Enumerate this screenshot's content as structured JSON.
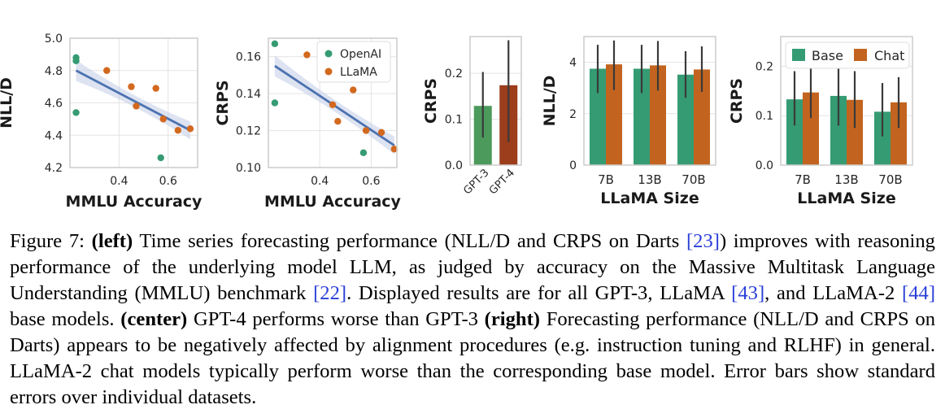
{
  "colors": {
    "openai": "#359b73",
    "llama": "#d2691e",
    "base": "#359b73",
    "chat": "#c2641f",
    "gpt3": "#4c9a5c",
    "gpt4": "#9c3d1b",
    "fit_line": "#4c72b0",
    "fit_band": "#c7d0e8"
  },
  "chart_data": [
    {
      "type": "scatter",
      "xlabel": "MMLU Accuracy",
      "ylabel": "NLL/D",
      "xlim": [
        0.2,
        0.72
      ],
      "ylim": [
        4.2,
        5.0
      ],
      "xticks": [
        "0.4",
        "0.6"
      ],
      "yticks": [
        "4.2",
        "4.4",
        "4.6",
        "4.8",
        "5.0"
      ],
      "grid": true,
      "series": [
        {
          "name": "OpenAI",
          "points": [
            [
              0.225,
              4.88
            ],
            [
              0.225,
              4.86
            ],
            [
              0.225,
              4.54
            ],
            [
              0.57,
              4.26
            ]
          ]
        },
        {
          "name": "LLaMA",
          "points": [
            [
              0.35,
              4.8
            ],
            [
              0.45,
              4.7
            ],
            [
              0.47,
              4.58
            ],
            [
              0.55,
              4.69
            ],
            [
              0.58,
              4.5
            ],
            [
              0.64,
              4.43
            ],
            [
              0.69,
              4.44
            ]
          ]
        }
      ],
      "regression": {
        "x": [
          0.225,
          0.69
        ],
        "y": [
          4.8,
          4.43
        ]
      }
    },
    {
      "type": "scatter",
      "xlabel": "MMLU Accuracy",
      "ylabel": "CRPS",
      "xlim": [
        0.2,
        0.7
      ],
      "ylim": [
        0.1,
        0.17
      ],
      "xticks": [
        "0.4",
        "0.6"
      ],
      "yticks": [
        "0.10",
        "0.12",
        "0.14",
        "0.16"
      ],
      "grid": true,
      "legend_position": "top-right",
      "series": [
        {
          "name": "OpenAI",
          "points": [
            [
              0.225,
              0.167
            ],
            [
              0.225,
              0.135
            ],
            [
              0.57,
              0.108
            ]
          ]
        },
        {
          "name": "LLaMA",
          "points": [
            [
              0.35,
              0.161
            ],
            [
              0.45,
              0.134
            ],
            [
              0.47,
              0.125
            ],
            [
              0.53,
              0.142
            ],
            [
              0.58,
              0.12
            ],
            [
              0.64,
              0.119
            ],
            [
              0.69,
              0.11
            ]
          ]
        }
      ],
      "regression": {
        "x": [
          0.225,
          0.69
        ],
        "y": [
          0.155,
          0.112
        ]
      }
    },
    {
      "type": "bar",
      "ylabel": "CRPS",
      "categories": [
        "GPT-3",
        "GPT-4"
      ],
      "values": [
        0.129,
        0.174
      ],
      "errors": [
        [
          0.06,
          0.203
        ],
        [
          0.05,
          0.272
        ]
      ],
      "ylim": [
        0,
        0.28
      ],
      "yticks": [
        "0.0",
        "0.1",
        "0.2"
      ],
      "grid": true
    },
    {
      "type": "bar",
      "xlabel": "LLaMA Size",
      "ylabel": "NLL/D",
      "categories": [
        "7B",
        "13B",
        "70B"
      ],
      "series": [
        {
          "values": [
            3.75,
            3.75,
            3.52
          ],
          "errors": [
            [
              2.8,
              4.68
            ],
            [
              2.8,
              4.68
            ],
            [
              2.62,
              4.43
            ]
          ]
        },
        {
          "values": [
            3.92,
            3.88,
            3.72
          ],
          "errors": [
            [
              2.92,
              4.85
            ],
            [
              2.9,
              4.83
            ],
            [
              2.85,
              4.62
            ]
          ]
        }
      ],
      "ylim": [
        0,
        5.0
      ],
      "yticks": [
        "0",
        "2",
        "4"
      ],
      "grid": true
    },
    {
      "type": "bar",
      "xlabel": "LLaMA Size",
      "ylabel": "CRPS",
      "categories": [
        "7B",
        "13B",
        "70B"
      ],
      "series": [
        {
          "name": "Base",
          "values": [
            0.133,
            0.14,
            0.108
          ],
          "errors": [
            [
              0.08,
              0.19
            ],
            [
              0.08,
              0.205
            ],
            [
              0.058,
              0.166
            ]
          ]
        },
        {
          "name": "Chat",
          "values": [
            0.147,
            0.132,
            0.127
          ],
          "errors": [
            [
              0.095,
              0.2
            ],
            [
              0.075,
              0.19
            ],
            [
              0.075,
              0.178
            ]
          ]
        }
      ],
      "ylim": [
        0,
        0.26
      ],
      "yticks": [
        "0.0",
        "0.1",
        "0.2"
      ],
      "grid": true,
      "legend_position": "top"
    }
  ],
  "caption": {
    "figure_label": "Figure 7:",
    "open_paren": "(",
    "left_word": "left",
    "close_paren": ")",
    "part1": "Time series forecasting performance (NLL/D and CRPS on Darts",
    "ref_darts": "[23]",
    "part2": ") improves with reasoning performance of the underlying model LLM, as judged by accuracy on the Massive Multitask Language Understanding (MMLU) benchmark",
    "ref_mmlu": "[22]",
    "part3": ". Displayed results are for all GPT-3, LLaMA",
    "ref_llama": "[43]",
    "part4": ", and LLaMA-2",
    "ref_llama2": "[44]",
    "part5": "base models.",
    "open_paren2": "(",
    "center_word": "center",
    "close_paren2": ")",
    "part6": "GPT-4 performs worse than GPT-3",
    "open_paren3": "(",
    "right_word": "right",
    "close_paren3": ")",
    "part7": "Forecasting performance (NLL/D and CRPS on Darts) appears to be negatively affected by alignment procedures (e.g. instruction tuning and RLHF) in general. LLaMA-2 chat models typically perform worse than the corresponding base model. Error bars show standard errors over individual datasets."
  }
}
